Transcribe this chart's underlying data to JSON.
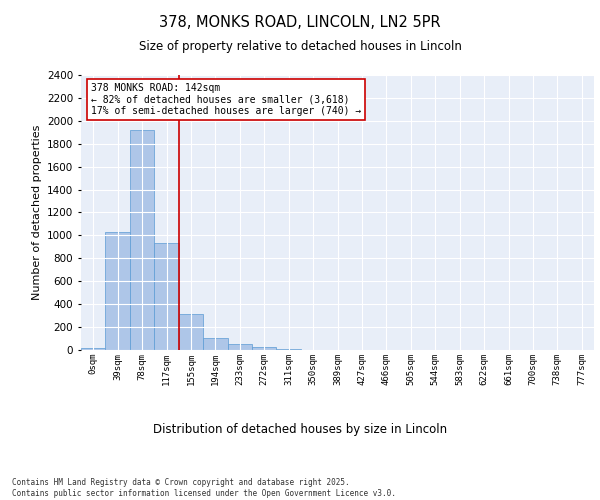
{
  "title_line1": "378, MONKS ROAD, LINCOLN, LN2 5PR",
  "title_line2": "Size of property relative to detached houses in Lincoln",
  "xlabel": "Distribution of detached houses by size in Lincoln",
  "ylabel": "Number of detached properties",
  "categories": [
    "0sqm",
    "39sqm",
    "78sqm",
    "117sqm",
    "155sqm",
    "194sqm",
    "233sqm",
    "272sqm",
    "311sqm",
    "350sqm",
    "389sqm",
    "427sqm",
    "466sqm",
    "505sqm",
    "544sqm",
    "583sqm",
    "622sqm",
    "661sqm",
    "700sqm",
    "738sqm",
    "777sqm"
  ],
  "bar_values": [
    20,
    1030,
    1920,
    930,
    310,
    105,
    50,
    25,
    10,
    0,
    0,
    0,
    0,
    0,
    0,
    0,
    0,
    0,
    0,
    0,
    0
  ],
  "bar_color": "#aec6e8",
  "bar_edgecolor": "#5b9bd5",
  "background_color": "#e8eef8",
  "grid_color": "#ffffff",
  "ylim": [
    0,
    2400
  ],
  "yticks": [
    0,
    200,
    400,
    600,
    800,
    1000,
    1200,
    1400,
    1600,
    1800,
    2000,
    2200,
    2400
  ],
  "vline_x": 3.5,
  "vline_color": "#cc0000",
  "annotation_text": "378 MONKS ROAD: 142sqm\n← 82% of detached houses are smaller (3,618)\n17% of semi-detached houses are larger (740) →",
  "footer_line1": "Contains HM Land Registry data © Crown copyright and database right 2025.",
  "footer_line2": "Contains public sector information licensed under the Open Government Licence v3.0."
}
